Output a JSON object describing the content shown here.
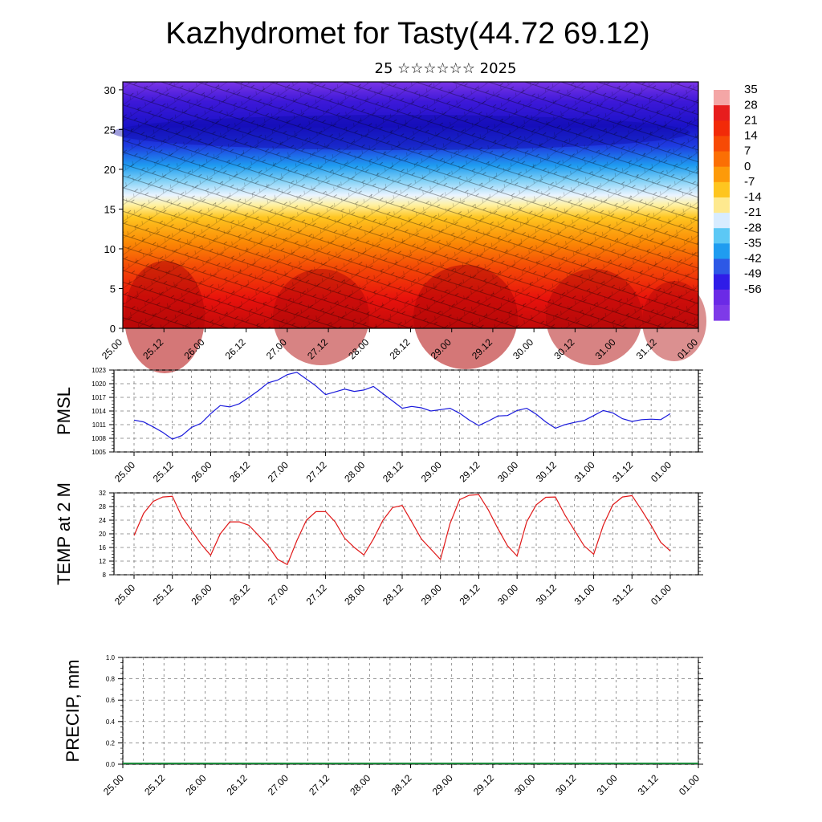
{
  "title": "Kazhydromet for Tasty(44.72 69.12)",
  "subtitle": "25 ☆☆☆☆☆☆ 2025",
  "time_labels": [
    "25.00",
    "25.12",
    "26.00",
    "26.12",
    "27.00",
    "27.12",
    "28.00",
    "28.12",
    "29.00",
    "29.12",
    "30.00",
    "30.12",
    "31.00",
    "31.12",
    "01.00"
  ],
  "chart_data": [
    {
      "type": "heatmap",
      "title": "",
      "ylim": [
        0,
        31
      ],
      "y_ticks": [
        0,
        5,
        10,
        15,
        20,
        25,
        30
      ],
      "colorbar": {
        "labels": [
          "35",
          "28",
          "21",
          "14",
          "7",
          "0",
          "-7",
          "-14",
          "-21",
          "-28",
          "-35",
          "-42",
          "-49",
          "-56"
        ],
        "colors": [
          "#f4a6a6",
          "#e71d1d",
          "#f22a08",
          "#f74a05",
          "#fb6f04",
          "#fd9a09",
          "#fec51f",
          "#fee98f",
          "#d8ecff",
          "#5cc8f5",
          "#1f9cf0",
          "#2d58e6",
          "#2f1ce8",
          "#6b2ae6",
          "#7e3ae8"
        ]
      },
      "overlay": "wind barbs"
    },
    {
      "type": "line",
      "ylabel": "PMSL",
      "ylim": [
        1005,
        1023
      ],
      "y_ticks": [
        1005,
        1008,
        1011,
        1014,
        1017,
        1020,
        1023
      ],
      "color": "#1a1adc",
      "series": [
        {
          "values": [
            1012,
            1011.6,
            1010.5,
            1009.3,
            1007.8,
            1008.6,
            1010.4,
            1011.3,
            1013.4,
            1015.2,
            1014.9,
            1015.6,
            1017.0,
            1018.5,
            1020.2,
            1020.8,
            1022.0,
            1022.5,
            1021.0,
            1019.5,
            1017.6,
            1018.2,
            1018.8,
            1018.3,
            1018.6,
            1019.4,
            1017.8,
            1016.2,
            1014.6,
            1015.0,
            1014.7,
            1014.0,
            1014.3,
            1014.6,
            1013.5,
            1012.0,
            1010.8,
            1011.8,
            1012.9,
            1013.0,
            1014.1,
            1014.6,
            1013.3,
            1011.6,
            1010.2,
            1011.0,
            1011.5,
            1011.9,
            1013.0,
            1014.1,
            1013.6,
            1012.3,
            1011.7,
            1012.1,
            1012.2,
            1012.1,
            1013.4
          ]
        }
      ]
    },
    {
      "type": "line",
      "ylabel": "TEMP at 2 M",
      "ylim": [
        8,
        32
      ],
      "y_ticks": [
        8,
        12,
        16,
        20,
        24,
        28,
        32
      ],
      "color": "#e01818",
      "series": [
        {
          "values": [
            19.5,
            26,
            29.5,
            30.8,
            31,
            25,
            21,
            17,
            13.7,
            20,
            23.5,
            23.5,
            22.5,
            19.5,
            16.5,
            12.5,
            11,
            18,
            24,
            26.5,
            26.5,
            23.5,
            18.7,
            16,
            13.8,
            18.5,
            24,
            27.7,
            28.3,
            23.5,
            18.5,
            15.5,
            12.5,
            23,
            30,
            31.3,
            31.5,
            27,
            21.5,
            16.5,
            13.5,
            23.5,
            28.5,
            30.7,
            30.8,
            25.5,
            21,
            16.5,
            14,
            22.5,
            28.5,
            30.8,
            31.2,
            27,
            22.5,
            17.5,
            15
          ]
        }
      ]
    },
    {
      "type": "bar",
      "ylabel": "PRECIP, mm",
      "ylim": [
        0,
        1
      ],
      "y_ticks": [
        "0.0",
        "0.2",
        "0.4",
        "0.6",
        "0.8",
        "1.0"
      ],
      "values": []
    }
  ]
}
